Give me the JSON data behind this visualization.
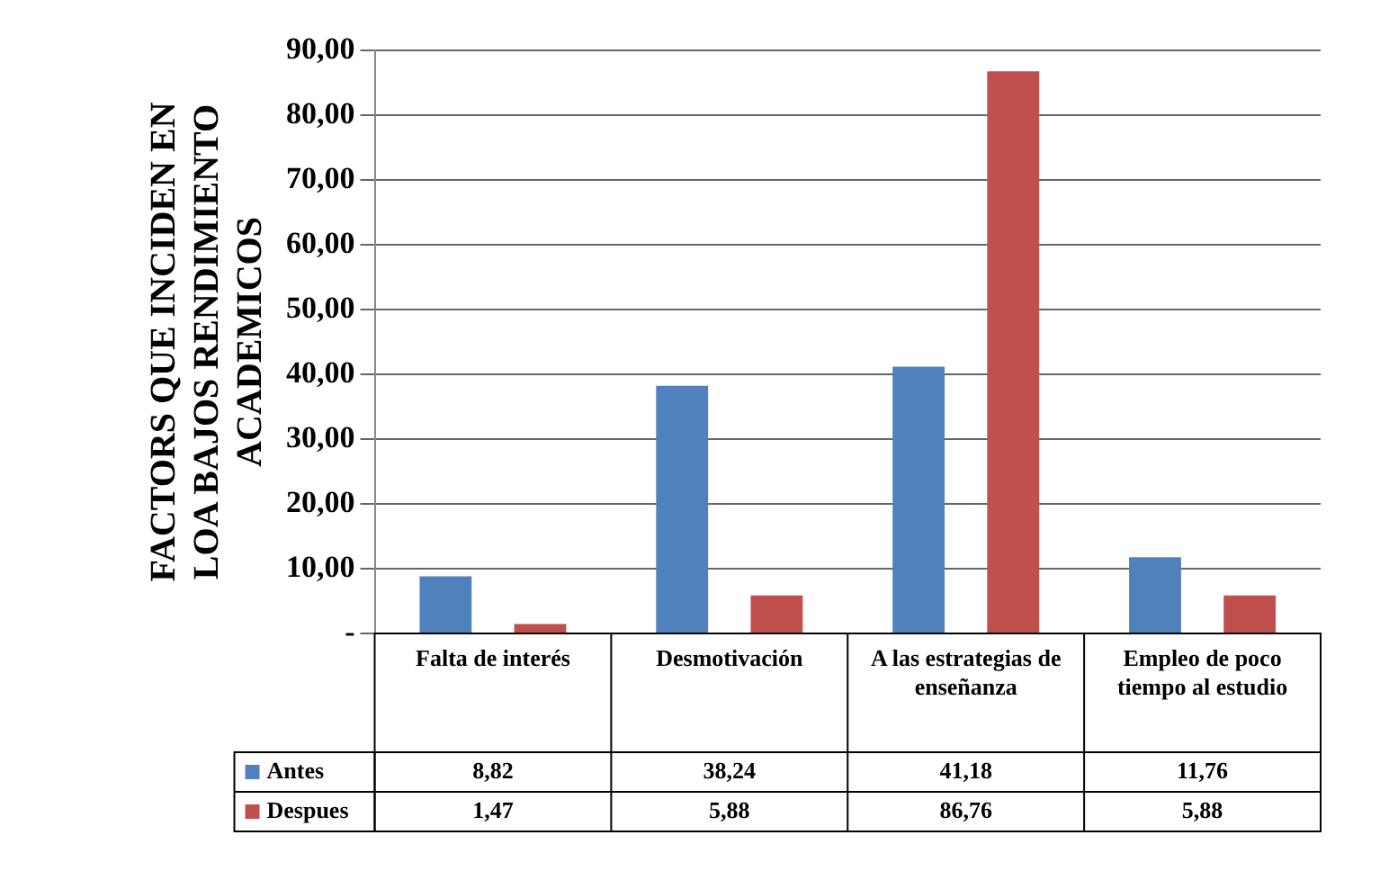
{
  "chart_data": {
    "type": "bar",
    "ylabel": "FACTORS QUE INCIDEN EN LOA BAJOS RENDIMIENTO ACADEMICOS",
    "categories": [
      "Falta de interés",
      "Desmotivación",
      "A las estrategias de enseñanza",
      "Empleo de poco tiempo al estudio"
    ],
    "series": [
      {
        "name": "Antes",
        "color": "#4f81bd",
        "values": [
          8.82,
          38.24,
          41.18,
          11.76
        ],
        "value_labels": [
          "8,82",
          "38,24",
          "41,18",
          "11,76"
        ]
      },
      {
        "name": "Despues",
        "color": "#c0504d",
        "values": [
          1.47,
          5.88,
          86.76,
          5.88
        ],
        "value_labels": [
          "1,47",
          "5,88",
          "86,76",
          "5,88"
        ]
      }
    ],
    "ylim": [
      0,
      90
    ],
    "yticks": [
      {
        "value": 0,
        "label": "-"
      },
      {
        "value": 10,
        "label": "10,00"
      },
      {
        "value": 20,
        "label": "20,00"
      },
      {
        "value": 30,
        "label": "30,00"
      },
      {
        "value": 40,
        "label": "40,00"
      },
      {
        "value": 50,
        "label": "50,00"
      },
      {
        "value": 60,
        "label": "60,00"
      },
      {
        "value": 70,
        "label": "70,00"
      },
      {
        "value": 80,
        "label": "80,00"
      },
      {
        "value": 90,
        "label": "90,00"
      }
    ],
    "grid": "y",
    "legend": "bottom"
  }
}
